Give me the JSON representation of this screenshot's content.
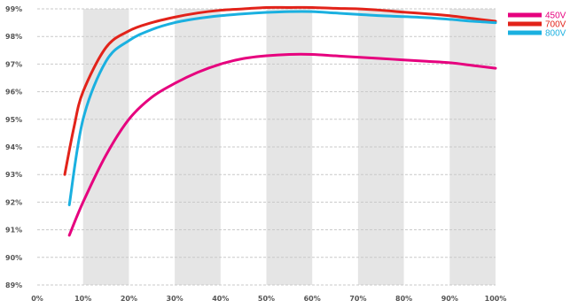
{
  "chart_data": {
    "type": "line",
    "title": "",
    "xlabel": "",
    "ylabel": "",
    "x_unit": "%",
    "y_unit": "%",
    "xlim": [
      0,
      100
    ],
    "ylim": [
      89,
      99
    ],
    "x_ticks": [
      "0%",
      "10%",
      "20%",
      "30%",
      "40%",
      "50%",
      "60%",
      "70%",
      "80%",
      "90%",
      "100%"
    ],
    "y_ticks": [
      "89%",
      "90%",
      "91%",
      "92%",
      "93%",
      "94%",
      "95%",
      "96%",
      "97%",
      "98%",
      "99%"
    ],
    "grid": "horizontal dashed lines, alternating vertical gray bands",
    "legend_position": "top-right",
    "series": [
      {
        "name": "450V",
        "color": "#e6007e",
        "points": [
          [
            7,
            90.8
          ],
          [
            10,
            92.0
          ],
          [
            15,
            93.7
          ],
          [
            20,
            95.0
          ],
          [
            25,
            95.8
          ],
          [
            30,
            96.3
          ],
          [
            35,
            96.7
          ],
          [
            40,
            97.0
          ],
          [
            45,
            97.2
          ],
          [
            50,
            97.3
          ],
          [
            55,
            97.35
          ],
          [
            60,
            97.35
          ],
          [
            65,
            97.3
          ],
          [
            70,
            97.25
          ],
          [
            75,
            97.2
          ],
          [
            80,
            97.15
          ],
          [
            85,
            97.1
          ],
          [
            90,
            97.05
          ],
          [
            95,
            96.95
          ],
          [
            100,
            96.85
          ]
        ]
      },
      {
        "name": "700V",
        "color": "#e2231a",
        "points": [
          [
            6,
            93.0
          ],
          [
            8,
            94.7
          ],
          [
            10,
            96.0
          ],
          [
            15,
            97.6
          ],
          [
            20,
            98.2
          ],
          [
            25,
            98.5
          ],
          [
            30,
            98.7
          ],
          [
            35,
            98.85
          ],
          [
            40,
            98.95
          ],
          [
            45,
            99.0
          ],
          [
            50,
            99.05
          ],
          [
            55,
            99.05
          ],
          [
            60,
            99.05
          ],
          [
            65,
            99.02
          ],
          [
            70,
            99.0
          ],
          [
            75,
            98.95
          ],
          [
            80,
            98.88
          ],
          [
            85,
            98.82
          ],
          [
            90,
            98.75
          ],
          [
            95,
            98.65
          ],
          [
            100,
            98.55
          ]
        ]
      },
      {
        "name": "800V",
        "color": "#1ab0e0",
        "points": [
          [
            7,
            91.9
          ],
          [
            10,
            95.0
          ],
          [
            15,
            97.1
          ],
          [
            20,
            97.85
          ],
          [
            25,
            98.25
          ],
          [
            30,
            98.5
          ],
          [
            35,
            98.65
          ],
          [
            40,
            98.75
          ],
          [
            45,
            98.82
          ],
          [
            50,
            98.87
          ],
          [
            55,
            98.9
          ],
          [
            60,
            98.9
          ],
          [
            65,
            98.85
          ],
          [
            70,
            98.8
          ],
          [
            75,
            98.75
          ],
          [
            80,
            98.72
          ],
          [
            85,
            98.68
          ],
          [
            90,
            98.62
          ],
          [
            95,
            98.55
          ],
          [
            100,
            98.5
          ]
        ]
      }
    ]
  },
  "style": {
    "band_color": "#e5e5e5",
    "grid_color": "#c9c9c9"
  }
}
